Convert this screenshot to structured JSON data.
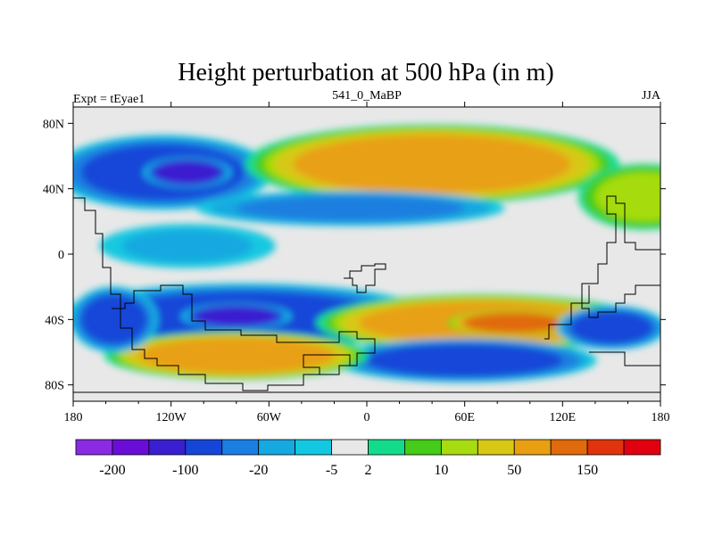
{
  "chart_data": {
    "type": "heatmap",
    "title": "Height perturbation at 500 hPa (in m)",
    "subtitle_left": "Expt = tEyae1",
    "subtitle_center": "541_0_MaBP",
    "subtitle_right": "JJA",
    "x_ticks": [
      "180",
      "120W",
      "60W",
      "0",
      "60E",
      "120E",
      "180"
    ],
    "x_tick_values": [
      -180,
      -120,
      -60,
      0,
      60,
      120,
      180
    ],
    "y_ticks": [
      "80N",
      "40N",
      "0",
      "40S",
      "80S"
    ],
    "y_tick_values": [
      80,
      40,
      0,
      -40,
      -80
    ],
    "xlim": [
      -180,
      180
    ],
    "ylim": [
      -90,
      90
    ],
    "colorbar": {
      "colors": [
        "#8a2be2",
        "#6a0dd6",
        "#3a1fd0",
        "#1646d8",
        "#1a7fe0",
        "#16a8e0",
        "#12c8e0",
        "#e8e8e8",
        "#12dc8c",
        "#44cc18",
        "#a6dc10",
        "#d8c814",
        "#e8a012",
        "#e06a0c",
        "#e0340c",
        "#e00010"
      ],
      "labels": [
        "-200",
        "-100",
        "-20",
        "-5",
        "2",
        "10",
        "50",
        "150"
      ],
      "label_boundary_index": [
        1,
        3,
        5,
        7,
        8,
        10,
        12,
        14
      ]
    },
    "features": [
      {
        "name": "nh-low-pacific",
        "lon": -125,
        "lat": 50,
        "w": 100,
        "h": 34,
        "level": -100
      },
      {
        "name": "nh-low-pacific-core",
        "lon": -110,
        "lat": 50,
        "w": 40,
        "h": 14,
        "level": -200
      },
      {
        "name": "nh-high-atlantic-eurasia",
        "lon": 40,
        "lat": 55,
        "w": 170,
        "h": 36,
        "level": 50
      },
      {
        "name": "nh-low-eq-atlantic",
        "lon": -10,
        "lat": 28,
        "w": 140,
        "h": 16,
        "level": -20
      },
      {
        "name": "nh-high-pacific-east",
        "lon": 170,
        "lat": 35,
        "w": 60,
        "h": 30,
        "level": 10
      },
      {
        "name": "nh-low-eq-pacific",
        "lon": -110,
        "lat": 5,
        "w": 80,
        "h": 20,
        "level": -5
      },
      {
        "name": "sh-low-band",
        "lon": -75,
        "lat": -38,
        "w": 170,
        "h": 30,
        "level": -100
      },
      {
        "name": "sh-low-core",
        "lon": -80,
        "lat": -38,
        "w": 50,
        "h": 12,
        "level": -200
      },
      {
        "name": "sh-high-indian",
        "lon": 70,
        "lat": -42,
        "w": 150,
        "h": 26,
        "level": 50
      },
      {
        "name": "sh-high-indian-core",
        "lon": 90,
        "lat": -42,
        "w": 60,
        "h": 12,
        "level": 150
      },
      {
        "name": "sh-low-south-atlantic",
        "lon": 60,
        "lat": -65,
        "w": 120,
        "h": 20,
        "level": -100
      },
      {
        "name": "sh-high-antarctic",
        "lon": -80,
        "lat": -62,
        "w": 120,
        "h": 22,
        "level": 50
      },
      {
        "name": "sh-low-australia",
        "lon": 150,
        "lat": -45,
        "w": 50,
        "h": 20,
        "level": -100
      },
      {
        "name": "sh-low-south-pacific-west",
        "lon": -155,
        "lat": -40,
        "w": 40,
        "h": 30,
        "level": -100
      }
    ]
  }
}
